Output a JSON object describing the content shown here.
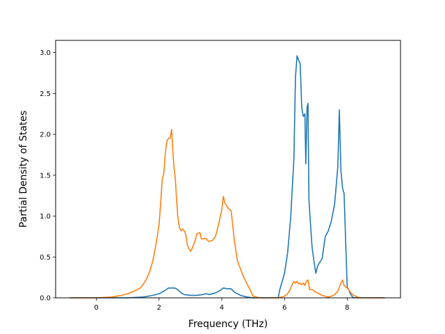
{
  "chart_data": {
    "type": "line",
    "title": "",
    "xlabel": "Frequency (THz)",
    "ylabel": "Partial Density of States",
    "xlim": [
      -1.3,
      9.7
    ],
    "ylim": [
      0,
      3.15
    ],
    "xticks": [
      0,
      2,
      4,
      6,
      8
    ],
    "yticks": [
      0.0,
      0.5,
      1.0,
      1.5,
      2.0,
      2.5,
      3.0
    ],
    "xtick_labels": [
      "0",
      "2",
      "4",
      "6",
      "8"
    ],
    "ytick_labels": [
      "0.0",
      "0.5",
      "1.0",
      "1.5",
      "2.0",
      "2.5",
      "3.0"
    ],
    "grid": false,
    "series": [
      {
        "color": "#1f77b4",
        "x": [
          -0.85,
          0.0,
          0.5,
          1.0,
          1.5,
          1.8,
          2.0,
          2.15,
          2.3,
          2.5,
          2.6,
          2.7,
          2.8,
          3.0,
          3.2,
          3.4,
          3.5,
          3.6,
          3.8,
          3.95,
          4.05,
          4.2,
          4.3,
          4.4,
          4.6,
          4.8,
          5.0,
          5.5,
          5.8,
          5.85,
          6.0,
          6.1,
          6.2,
          6.3,
          6.35,
          6.4,
          6.48,
          6.5,
          6.55,
          6.6,
          6.65,
          6.68,
          6.72,
          6.75,
          6.78,
          6.82,
          6.88,
          6.95,
          7.0,
          7.05,
          7.1,
          7.15,
          7.2,
          7.3,
          7.4,
          7.5,
          7.6,
          7.7,
          7.75,
          7.8,
          7.85,
          7.88,
          7.9,
          7.95,
          8.0,
          8.05,
          8.1,
          8.15,
          8.2,
          8.3,
          8.4,
          8.6,
          9.2
        ],
        "y": [
          0.0,
          0.0,
          0.0,
          0.0,
          0.01,
          0.03,
          0.05,
          0.08,
          0.12,
          0.12,
          0.1,
          0.06,
          0.04,
          0.03,
          0.03,
          0.04,
          0.05,
          0.04,
          0.06,
          0.09,
          0.12,
          0.11,
          0.11,
          0.07,
          0.03,
          0.01,
          0.0,
          0.0,
          0.0,
          0.1,
          0.3,
          0.55,
          1.0,
          1.7,
          2.7,
          2.96,
          2.88,
          2.87,
          2.33,
          2.22,
          2.25,
          1.64,
          2.33,
          2.38,
          1.2,
          0.96,
          0.62,
          0.42,
          0.3,
          0.38,
          0.42,
          0.45,
          0.48,
          0.75,
          0.82,
          0.95,
          1.15,
          1.6,
          2.3,
          1.55,
          1.35,
          1.3,
          1.28,
          0.7,
          0.13,
          0.1,
          0.05,
          0.02,
          0.0,
          0.0,
          0.0,
          0.0,
          0.0
        ]
      },
      {
        "color": "#ff7f0e",
        "x": [
          -0.85,
          0.0,
          0.5,
          0.8,
          1.0,
          1.2,
          1.4,
          1.5,
          1.6,
          1.7,
          1.8,
          1.9,
          2.0,
          2.05,
          2.1,
          2.15,
          2.2,
          2.25,
          2.3,
          2.35,
          2.4,
          2.45,
          2.48,
          2.52,
          2.55,
          2.6,
          2.65,
          2.7,
          2.75,
          2.8,
          2.85,
          2.9,
          2.95,
          3.0,
          3.05,
          3.1,
          3.15,
          3.2,
          3.3,
          3.35,
          3.4,
          3.5,
          3.55,
          3.6,
          3.7,
          3.8,
          3.9,
          4.0,
          4.05,
          4.1,
          4.2,
          4.3,
          4.4,
          4.5,
          4.6,
          4.7,
          4.9,
          5.0,
          5.2,
          5.8,
          6.0,
          6.1,
          6.15,
          6.2,
          6.25,
          6.3,
          6.35,
          6.4,
          6.45,
          6.5,
          6.55,
          6.6,
          6.65,
          6.7,
          6.75,
          6.8,
          6.85,
          6.9,
          6.95,
          7.0,
          7.1,
          7.2,
          7.4,
          7.5,
          7.6,
          7.7,
          7.8,
          7.85,
          7.9,
          7.95,
          8.0,
          8.05,
          8.1,
          8.2,
          8.4,
          8.6,
          9.2
        ],
        "y": [
          0.0,
          0.0,
          0.01,
          0.03,
          0.05,
          0.08,
          0.12,
          0.17,
          0.23,
          0.32,
          0.45,
          0.65,
          0.9,
          1.15,
          1.45,
          1.52,
          1.78,
          1.92,
          1.95,
          1.95,
          2.06,
          1.72,
          1.58,
          1.45,
          1.25,
          0.98,
          0.86,
          0.82,
          0.84,
          0.82,
          0.78,
          0.65,
          0.6,
          0.57,
          0.6,
          0.65,
          0.7,
          0.78,
          0.8,
          0.72,
          0.72,
          0.73,
          0.7,
          0.69,
          0.7,
          0.75,
          0.9,
          1.08,
          1.24,
          1.16,
          1.1,
          1.06,
          0.7,
          0.45,
          0.35,
          0.25,
          0.1,
          0.02,
          0.0,
          0.0,
          0.02,
          0.05,
          0.08,
          0.12,
          0.17,
          0.2,
          0.18,
          0.2,
          0.17,
          0.18,
          0.16,
          0.18,
          0.15,
          0.2,
          0.22,
          0.1,
          0.1,
          0.1,
          0.08,
          0.07,
          0.05,
          0.03,
          0.01,
          0.02,
          0.04,
          0.08,
          0.18,
          0.22,
          0.15,
          0.13,
          0.12,
          0.1,
          0.07,
          0.03,
          0.0,
          0.0,
          0.0
        ]
      }
    ]
  }
}
